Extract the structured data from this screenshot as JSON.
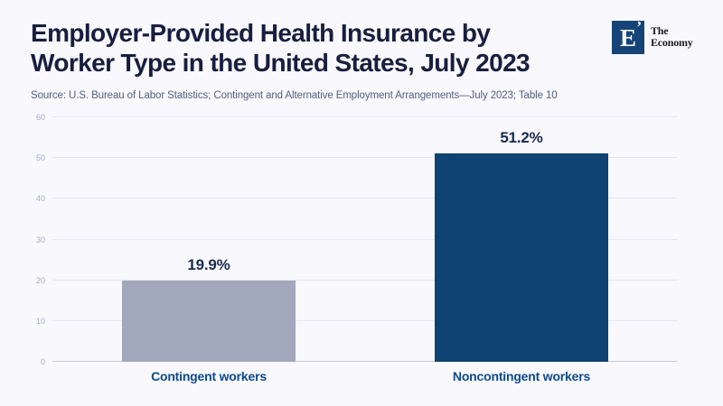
{
  "header": {
    "title_line1": "Employer-Provided Health Insurance by",
    "title_line2": "Worker Type in the United States, July 2023",
    "source": "Source: U.S. Bureau of Labor Statistics; Contingent and Alternative Employment Arrangements—July 2023; Table 10"
  },
  "logo": {
    "monogram": "E",
    "mark": "’",
    "name_line1": "The",
    "name_line2": "Economy"
  },
  "chart_data": {
    "type": "bar",
    "categories": [
      "Contingent workers",
      "Noncontingent workers"
    ],
    "values": [
      19.9,
      51.2
    ],
    "value_labels": [
      "19.9%",
      "51.2%"
    ],
    "bar_colors": [
      "#a1a8bb",
      "#0d4273"
    ],
    "title": "Employer-Provided Health Insurance by Worker Type in the United States, July 2023",
    "xlabel": "",
    "ylabel": "",
    "ylim": [
      0,
      60
    ],
    "yticks": [
      0,
      10,
      20,
      30,
      40,
      50,
      60
    ],
    "grid": true,
    "legend": false
  },
  "colors": {
    "background": "#f8f8fd",
    "title": "#191e3e",
    "source": "#53607c",
    "value_label": "#1b2a50",
    "category_label": "#0d4a8b",
    "tick_label": "#a8aec2",
    "gridline": "#e4e7ee",
    "axis_line": "#c9cbd3",
    "bar_contingent": "#a1a8bb",
    "bar_noncontingent": "#0d4273",
    "logo_square": "#164478"
  }
}
